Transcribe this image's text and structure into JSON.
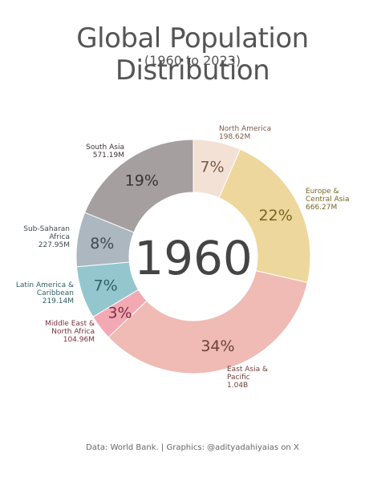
{
  "header": {
    "title": "Global Population Distribution",
    "subtitle": "(1960 to 2023)"
  },
  "footer": {
    "caption": "Data: World Bank.  |  Graphics: @adityadahiyaias on X"
  },
  "chart_data": {
    "type": "pie",
    "style": "donut",
    "center_label": "1960",
    "slices": [
      {
        "region": [
          "North America"
        ],
        "value_label": "198.62M",
        "value_millions": 198.62,
        "pct_label": "7%",
        "color": "#F3E1D5",
        "label_color": "#7A5A48"
      },
      {
        "region": [
          "Europe &",
          "Central Asia"
        ],
        "value_label": "666.27M",
        "value_millions": 666.27,
        "pct_label": "22%",
        "color": "#EDD79C",
        "label_color": "#7A6420"
      },
      {
        "region": [
          "East Asia &",
          "Pacific"
        ],
        "value_label": "1.04B",
        "value_millions": 1040,
        "pct_label": "34%",
        "color": "#EFBBB4",
        "label_color": "#6E3F3A"
      },
      {
        "region": [
          "Middle East &",
          "North Africa"
        ],
        "value_label": "104.96M",
        "value_millions": 104.96,
        "pct_label": "3%",
        "color": "#F3A9B4",
        "label_color": "#7A3040"
      },
      {
        "region": [
          "Latin America &",
          "Caribbean"
        ],
        "value_label": "219.14M",
        "value_millions": 219.14,
        "pct_label": "7%",
        "color": "#94C6CD",
        "label_color": "#2F5F66"
      },
      {
        "region": [
          "Sub-Saharan",
          "Africa"
        ],
        "value_label": "227.95M",
        "value_millions": 227.95,
        "pct_label": "8%",
        "color": "#ACB7BF",
        "label_color": "#3E4A52"
      },
      {
        "region": [
          "South Asia"
        ],
        "value_label": "571.19M",
        "value_millions": 571.19,
        "pct_label": "19%",
        "color": "#A69F9F",
        "label_color": "#3A3434"
      }
    ]
  }
}
